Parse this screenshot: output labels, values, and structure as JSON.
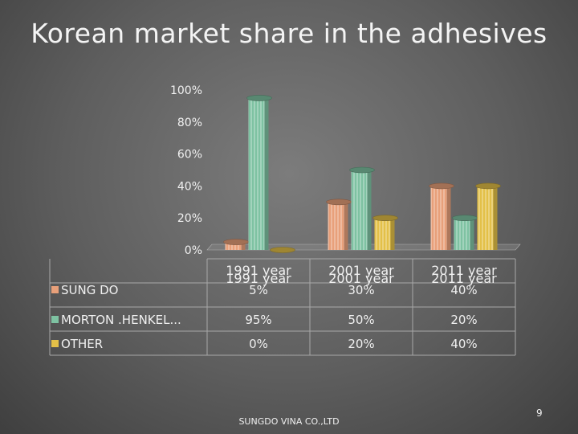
{
  "slide": {
    "title": "Korean market share in the adhesives",
    "footer": "SUNGDO VINA CO.,LTD",
    "page_number": "9"
  },
  "chart_data": {
    "type": "bar",
    "title": "Korean market share in the adhesives",
    "categories": [
      "1991 year",
      "2001 year",
      "2011 year"
    ],
    "ytick_labels": [
      "0%",
      "20%",
      "40%",
      "60%",
      "80%",
      "100%"
    ],
    "ylim": [
      0,
      100
    ],
    "grid": false,
    "legend": "left, in data table",
    "series": [
      {
        "name": "SUNG DO",
        "color": "#e8a07a",
        "values": [
          5,
          30,
          40
        ],
        "labels": [
          "5%",
          "30%",
          "40%"
        ]
      },
      {
        "name": "MORTON .HENKEL...",
        "color": "#7ec2a2",
        "values": [
          95,
          50,
          20
        ],
        "labels": [
          "95%",
          "50%",
          "20%"
        ]
      },
      {
        "name": "OTHER",
        "color": "#e3c048",
        "values": [
          0,
          20,
          40
        ],
        "labels": [
          "0%",
          "20%",
          "40%"
        ]
      }
    ]
  }
}
